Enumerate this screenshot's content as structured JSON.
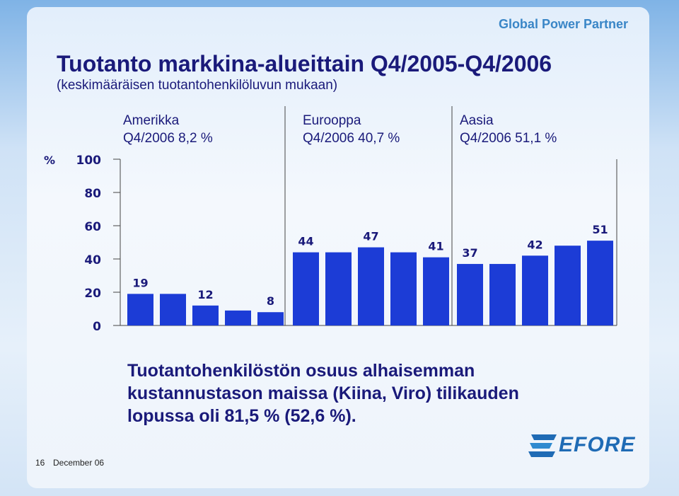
{
  "brand": "Global Power Partner",
  "title": "Tuotanto markkina-alueittain Q4/2005-Q4/2006",
  "subtitle": "(keskimääräisen tuotantohenkilöluvun mukaan)",
  "regions": [
    {
      "name": "Amerikka",
      "detail": "Q4/2006 8,2 %"
    },
    {
      "name": "Eurooppa",
      "detail": "Q4/2006 40,7 %"
    },
    {
      "name": "Aasia",
      "detail": "Q4/2006 51,1 %"
    }
  ],
  "note": {
    "line1": "Tuotantohenkilöstön osuus alhaisemman",
    "line2": "kustannustason maissa (Kiina, Viro) tilikauden",
    "line3": "lopussa oli 81,5 % (52,6 %)."
  },
  "footer": {
    "page": "16",
    "date": "December 06"
  },
  "logo": {
    "text": "EFORE"
  },
  "colors": {
    "bar": "#1c3cd6",
    "text": "#1a1a7a",
    "axis": "#444444"
  },
  "chart_data": {
    "type": "bar",
    "ylabel": "%",
    "ylim": [
      0,
      100
    ],
    "yticks": [
      0,
      20,
      40,
      60,
      80,
      100
    ],
    "groups": [
      "Amerikka",
      "Eurooppa",
      "Aasia"
    ],
    "series": [
      {
        "group": "Amerikka",
        "values": [
          19,
          19,
          12,
          9,
          8
        ]
      },
      {
        "group": "Eurooppa",
        "values": [
          44,
          44,
          47,
          44,
          41
        ]
      },
      {
        "group": "Aasia",
        "values": [
          37,
          37,
          42,
          48,
          51
        ]
      }
    ],
    "data_labels": [
      {
        "group": 0,
        "index": 0,
        "text": "19"
      },
      {
        "group": 0,
        "index": 2,
        "text": "12"
      },
      {
        "group": 0,
        "index": 4,
        "text": "8"
      },
      {
        "group": 1,
        "index": 0,
        "text": "44"
      },
      {
        "group": 1,
        "index": 2,
        "text": "47"
      },
      {
        "group": 1,
        "index": 4,
        "text": "41"
      },
      {
        "group": 2,
        "index": 0,
        "text": "37"
      },
      {
        "group": 2,
        "index": 2,
        "text": "42"
      },
      {
        "group": 2,
        "index": 4,
        "text": "51"
      }
    ]
  }
}
